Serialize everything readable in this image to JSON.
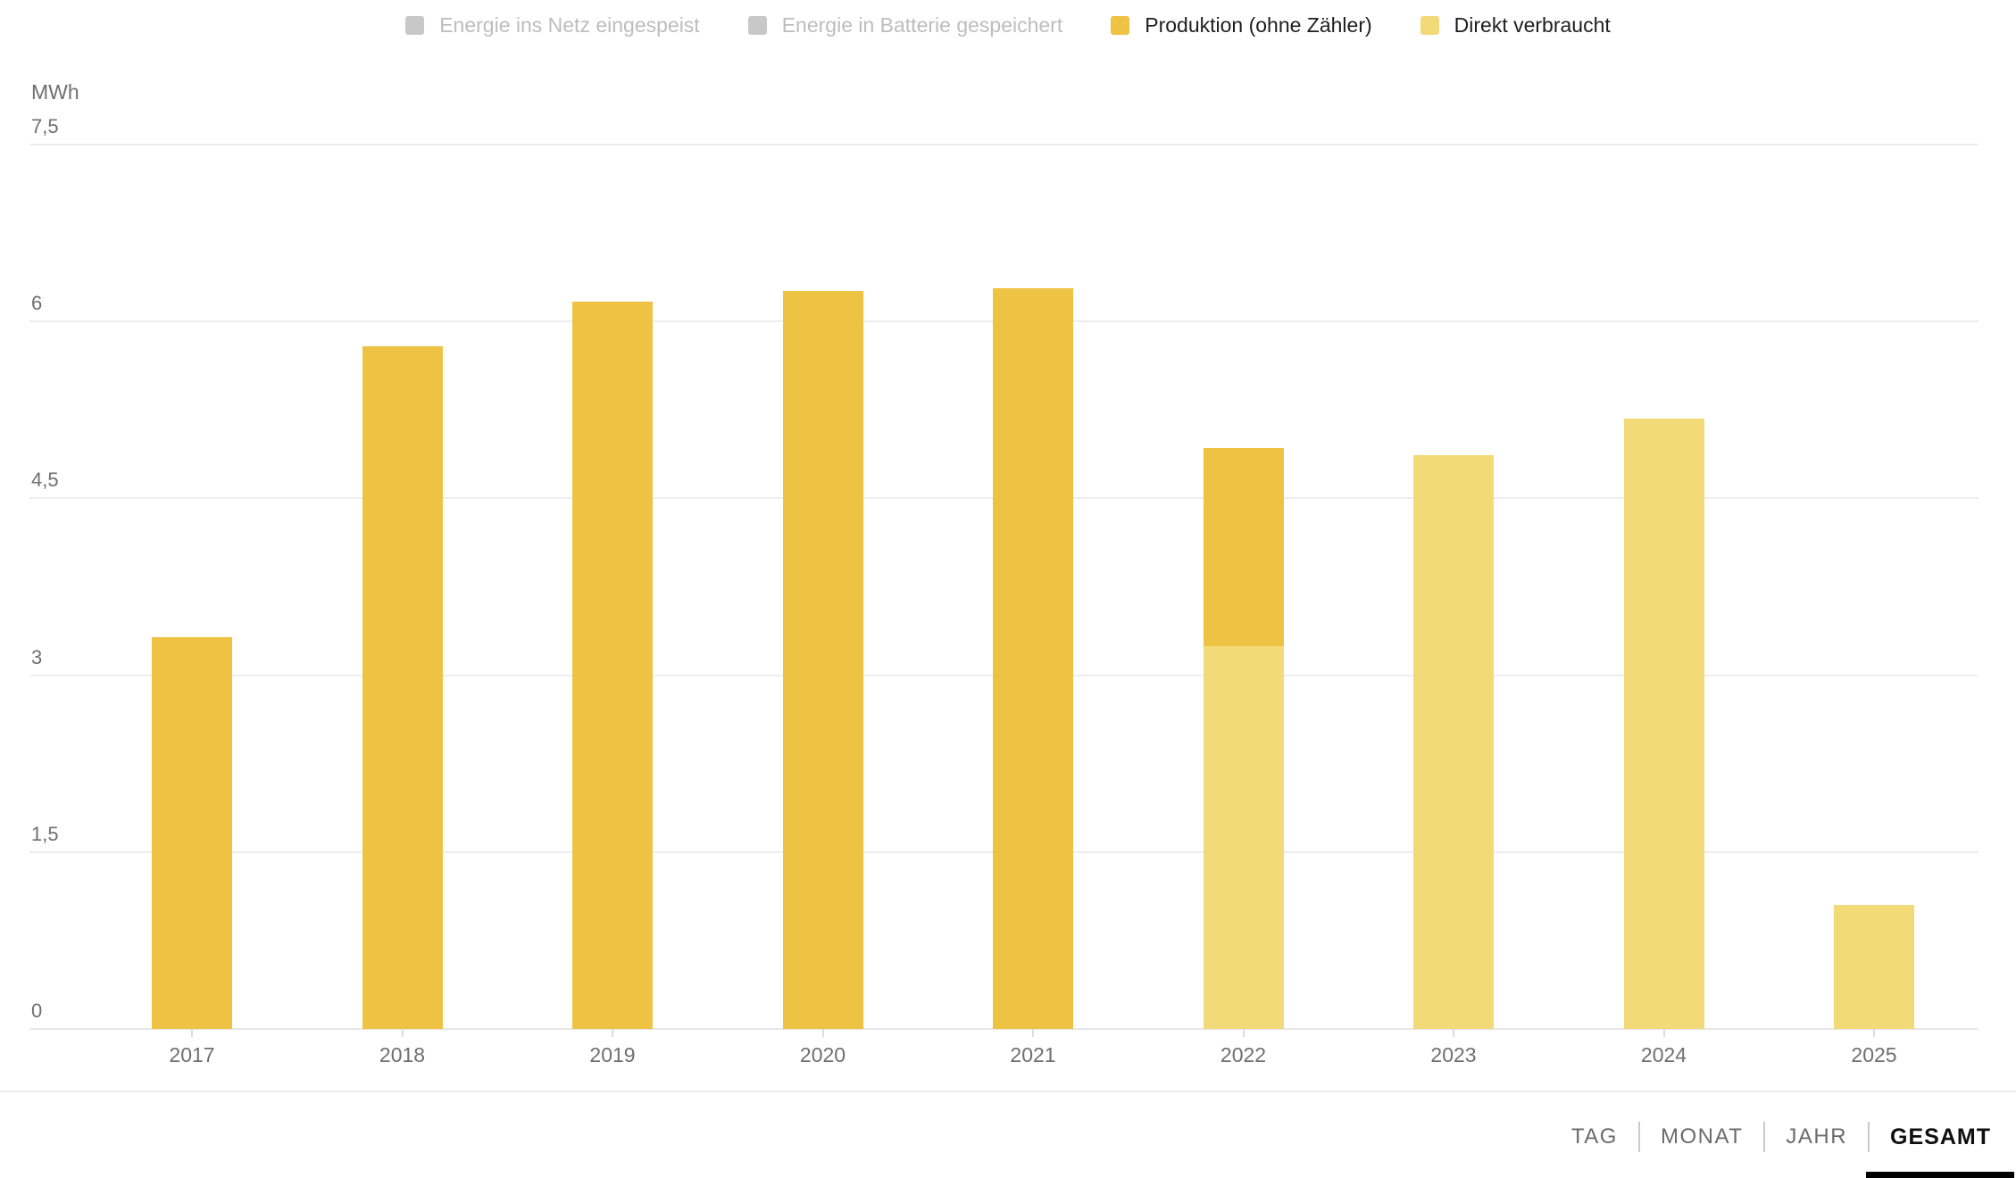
{
  "legend": {
    "items": [
      {
        "label": "Energie ins Netz eingespeist",
        "color": "#c8c8c8",
        "active": false
      },
      {
        "label": "Energie in Batterie gespeichert",
        "color": "#c8c8c8",
        "active": false
      },
      {
        "label": "Produktion (ohne Zähler)",
        "color": "#eec343",
        "active": true
      },
      {
        "label": "Direkt verbraucht",
        "color": "#f3da78",
        "active": true
      }
    ]
  },
  "axes": {
    "unit_label": "MWh",
    "yticks": [
      {
        "label": "0",
        "value": 0
      },
      {
        "label": "1,5",
        "value": 1.5
      },
      {
        "label": "3",
        "value": 3
      },
      {
        "label": "4,5",
        "value": 4.5
      },
      {
        "label": "6",
        "value": 6
      },
      {
        "label": "7,5",
        "value": 7.5
      }
    ]
  },
  "chart_data": {
    "type": "bar",
    "title": "",
    "unit": "MWh",
    "ylabel": "MWh",
    "xlabel": "",
    "ylim": [
      0,
      7.5
    ],
    "grid": true,
    "legend_position": "top-center",
    "categories": [
      "2017",
      "2018",
      "2019",
      "2020",
      "2021",
      "2022",
      "2023",
      "2024",
      "2025"
    ],
    "series": [
      {
        "name": "Energie ins Netz eingespeist",
        "color": "#c8c8c8",
        "visible": false,
        "values": [
          null,
          null,
          null,
          null,
          null,
          null,
          null,
          null,
          null
        ]
      },
      {
        "name": "Energie in Batterie gespeichert",
        "color": "#c8c8c8",
        "visible": false,
        "values": [
          null,
          null,
          null,
          null,
          null,
          null,
          null,
          null,
          null
        ]
      },
      {
        "name": "Produktion (ohne Zähler)",
        "color": "#eec343",
        "visible": true,
        "values": [
          3.32,
          5.79,
          6.17,
          6.26,
          6.28,
          4.93,
          null,
          null,
          null
        ]
      },
      {
        "name": "Direkt verbraucht",
        "color": "#f3da78",
        "visible": true,
        "values": [
          null,
          null,
          null,
          null,
          null,
          3.25,
          4.87,
          5.18,
          1.05
        ]
      }
    ],
    "render_note": "Direkt verbraucht is drawn in front of Produktion: light segment from 0 up to its value, dark Produktion remainder above it"
  },
  "footer": {
    "tabs": [
      {
        "label": "TAG",
        "active": false
      },
      {
        "label": "MONAT",
        "active": false
      },
      {
        "label": "JAHR",
        "active": false
      },
      {
        "label": "GESAMT",
        "active": true
      }
    ]
  },
  "colors": {
    "production": "#eec343",
    "direct_use": "#f3da78",
    "disabled_series": "#c8c8c8",
    "gridline": "#ededed",
    "axis_text": "#6f6f6f",
    "tab_inactive": "#6b6b6b",
    "tab_active": "#0f0f0f",
    "background": "#ffffff"
  }
}
